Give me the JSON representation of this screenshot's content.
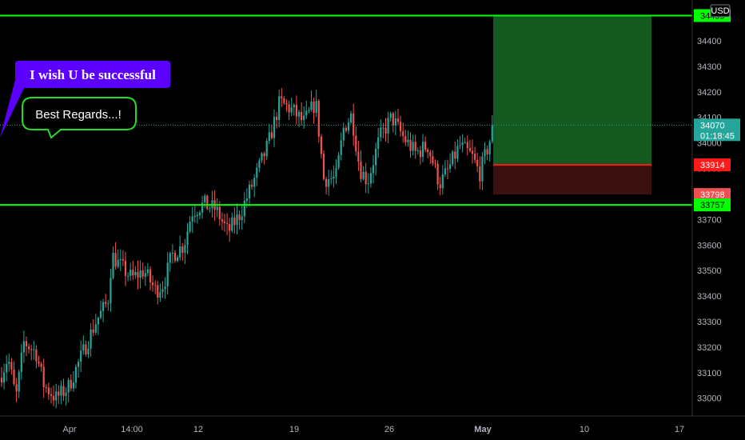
{
  "chart_data": {
    "type": "candlestick",
    "currency": "USD",
    "x_ticks": [
      "Apr",
      "14:00",
      "12",
      "19",
      "26",
      "May",
      "10",
      "17"
    ],
    "y_ticks": [
      33000,
      33100,
      33200,
      33300,
      33400,
      33500,
      33600,
      33700,
      33800,
      33900,
      34000,
      34100,
      34200,
      34300,
      34400,
      34500
    ],
    "ylim": [
      32930,
      34560
    ],
    "grid": false,
    "horizontal_lines": [
      {
        "value": 34499,
        "color": "#00ff00"
      },
      {
        "value": 33757,
        "color": "#00ff00"
      }
    ],
    "position": {
      "entry": 33914,
      "stop": 33798,
      "target": 34499,
      "profit_color": "#145a20",
      "loss_color": "#3a1010"
    },
    "price_tags": [
      {
        "label": "34499",
        "bg": "#00ff00",
        "fg": "#000"
      },
      {
        "label": "33914",
        "bg": "#ff1a1a",
        "fg": "#fff"
      },
      {
        "label": "33798",
        "bg": "#f05050",
        "fg": "#fff"
      },
      {
        "label": "33757",
        "bg": "#00ff00",
        "fg": "#000"
      }
    ],
    "last_price": {
      "value": 34070,
      "countdown": "01:18:45",
      "bg": "#26a69a"
    },
    "annotations": [
      {
        "text": "I wish U be successful",
        "bg": "#5b00ff",
        "border": "#5b00ff"
      },
      {
        "text": "Best Regards...!",
        "bg": "#000000",
        "border": "#22dd22"
      }
    ],
    "up_color": "#26a69a",
    "down_color": "#ef5350"
  }
}
